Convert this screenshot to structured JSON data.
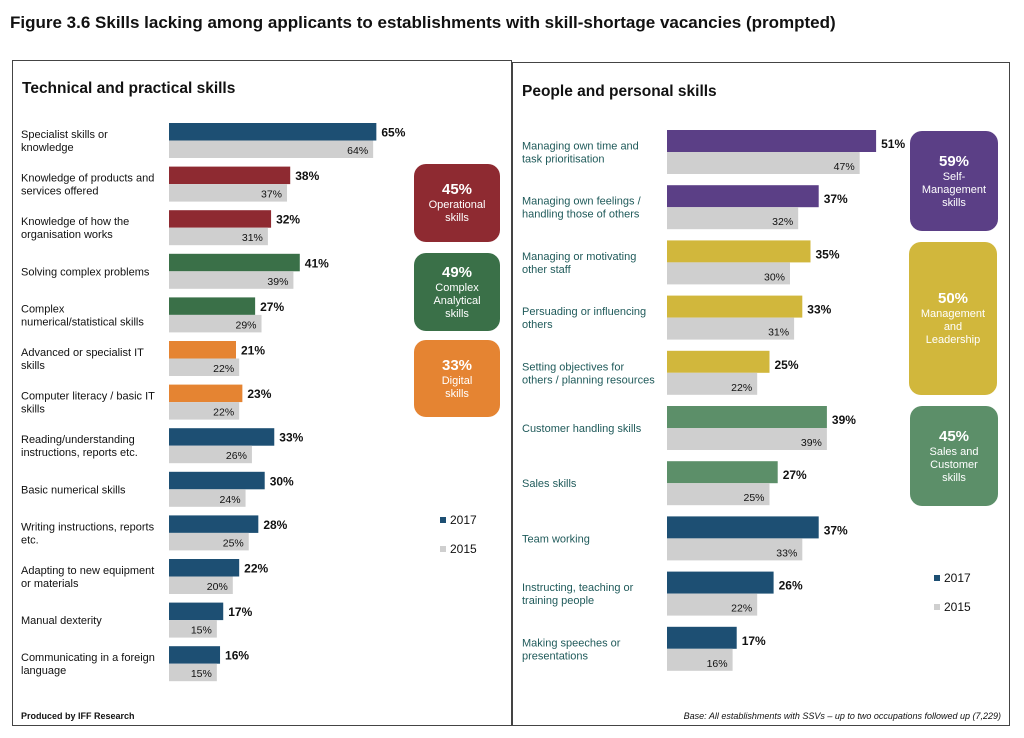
{
  "figure_title": "Figure 3.6 Skills lacking among applicants to establishments with skill-shortage vacancies (prompted)",
  "colors": {
    "gray_2015": "#cfcfcf",
    "navy": "#1d4f73",
    "red": "#8e2a31",
    "green": "#3a7048",
    "orange": "#e58432",
    "purple": "#5b3f86",
    "gold": "#d1b73c",
    "sage": "#5c8f69"
  },
  "legend": {
    "label_2017": "2017",
    "label_2015": "2015"
  },
  "footer_left": "Produced by IFF Research",
  "footer_right": "Base: All establishments with SSVs – up to two occupations followed up (7,229)",
  "chart_data": [
    {
      "type": "bar",
      "orientation": "horizontal",
      "title": "Technical and practical skills",
      "series_names": [
        "2017",
        "2015"
      ],
      "categories": [
        {
          "label_lines": [
            "Specialist skills or",
            "knowledge"
          ],
          "v2017": 65,
          "v2015": 64,
          "color": "navy"
        },
        {
          "label_lines": [
            "Knowledge of products and",
            "services offered"
          ],
          "v2017": 38,
          "v2015": 37,
          "color": "red"
        },
        {
          "label_lines": [
            "Knowledge of how the",
            "organisation works"
          ],
          "v2017": 32,
          "v2015": 31,
          "color": "red"
        },
        {
          "label_lines": [
            "Solving complex problems"
          ],
          "v2017": 41,
          "v2015": 39,
          "color": "green"
        },
        {
          "label_lines": [
            "Complex",
            "numerical/statistical skills"
          ],
          "v2017": 27,
          "v2015": 29,
          "color": "green"
        },
        {
          "label_lines": [
            "Advanced or specialist IT",
            "skills"
          ],
          "v2017": 21,
          "v2015": 22,
          "color": "orange"
        },
        {
          "label_lines": [
            "Computer literacy / basic IT",
            "skills"
          ],
          "v2017": 23,
          "v2015": 22,
          "color": "orange"
        },
        {
          "label_lines": [
            "Reading/understanding",
            "instructions, reports etc."
          ],
          "v2017": 33,
          "v2015": 26,
          "color": "navy"
        },
        {
          "label_lines": [
            "Basic numerical skills"
          ],
          "v2017": 30,
          "v2015": 24,
          "color": "navy"
        },
        {
          "label_lines": [
            "Writing instructions, reports",
            "etc."
          ],
          "v2017": 28,
          "v2015": 25,
          "color": "navy"
        },
        {
          "label_lines": [
            "Adapting to new equipment",
            "or materials"
          ],
          "v2017": 22,
          "v2015": 20,
          "color": "navy"
        },
        {
          "label_lines": [
            "Manual dexterity"
          ],
          "v2017": 17,
          "v2015": 15,
          "color": "navy"
        },
        {
          "label_lines": [
            "Communicating in a foreign",
            "language"
          ],
          "v2017": 16,
          "v2015": 15,
          "color": "navy"
        }
      ],
      "groups": [
        {
          "pct": "45%",
          "name_lines": [
            "Operational",
            "skills"
          ],
          "color": "red"
        },
        {
          "pct": "49%",
          "name_lines": [
            "Complex",
            "Analytical",
            "skills"
          ],
          "color": "green"
        },
        {
          "pct": "33%",
          "name_lines": [
            "Digital",
            "skills"
          ],
          "color": "orange"
        }
      ]
    },
    {
      "type": "bar",
      "orientation": "horizontal",
      "title": "People and personal skills",
      "series_names": [
        "2017",
        "2015"
      ],
      "categories": [
        {
          "label_lines": [
            "Managing own time and",
            "task prioritisation"
          ],
          "v2017": 51,
          "v2015": 47,
          "color": "purple"
        },
        {
          "label_lines": [
            "Managing own feelings /",
            "handling those of others"
          ],
          "v2017": 37,
          "v2015": 32,
          "color": "purple"
        },
        {
          "label_lines": [
            "Managing or motivating",
            "other staff"
          ],
          "v2017": 35,
          "v2015": 30,
          "color": "gold"
        },
        {
          "label_lines": [
            "Persuading or influencing",
            "others"
          ],
          "v2017": 33,
          "v2015": 31,
          "color": "gold"
        },
        {
          "label_lines": [
            "Setting objectives for",
            "others / planning resources"
          ],
          "v2017": 25,
          "v2015": 22,
          "color": "gold"
        },
        {
          "label_lines": [
            "Customer handling skills"
          ],
          "v2017": 39,
          "v2015": 39,
          "color": "sage"
        },
        {
          "label_lines": [
            "Sales skills"
          ],
          "v2017": 27,
          "v2015": 25,
          "color": "sage"
        },
        {
          "label_lines": [
            "Team working"
          ],
          "v2017": 37,
          "v2015": 33,
          "color": "navy"
        },
        {
          "label_lines": [
            "Instructing, teaching or",
            "training people"
          ],
          "v2017": 26,
          "v2015": 22,
          "color": "navy"
        },
        {
          "label_lines": [
            "Making speeches or",
            "presentations"
          ],
          "v2017": 17,
          "v2015": 16,
          "color": "navy"
        }
      ],
      "groups": [
        {
          "pct": "59%",
          "name_lines": [
            "Self-",
            "Management",
            "skills"
          ],
          "color": "purple"
        },
        {
          "pct": "50%",
          "name_lines": [
            "Management",
            "and",
            "Leadership"
          ],
          "color": "gold"
        },
        {
          "pct": "45%",
          "name_lines": [
            "Sales and",
            "Customer",
            "skills"
          ],
          "color": "sage"
        }
      ]
    }
  ]
}
